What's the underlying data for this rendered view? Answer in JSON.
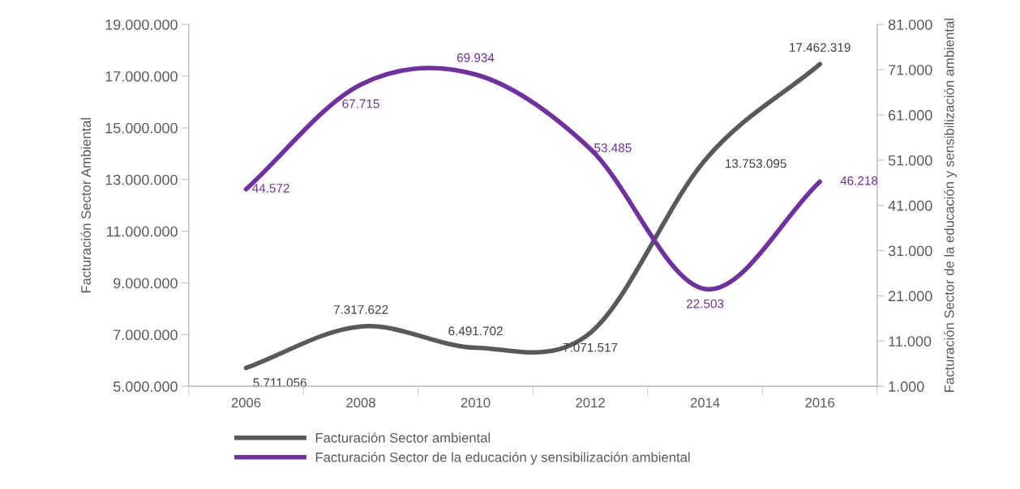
{
  "chart_data": {
    "type": "line",
    "categories": [
      "2006",
      "2008",
      "2010",
      "2012",
      "2014",
      "2016"
    ],
    "ylabel": "Facturación Sector Ambiental",
    "y2label": "Facturación Sector de la educación y sensibilización ambiental",
    "ylim": [
      5000000,
      19000000
    ],
    "yticks": [
      {
        "value": 5000000,
        "label": "5.000.000"
      },
      {
        "value": 7000000,
        "label": "7.000.000"
      },
      {
        "value": 9000000,
        "label": "9.000.000"
      },
      {
        "value": 11000000,
        "label": "11.000.000"
      },
      {
        "value": 13000000,
        "label": "13.000.000"
      },
      {
        "value": 15000000,
        "label": "15.000.000"
      },
      {
        "value": 17000000,
        "label": "17.000.000"
      },
      {
        "value": 19000000,
        "label": "19.000.000"
      }
    ],
    "y2lim": [
      1000,
      81000
    ],
    "y2ticks": [
      {
        "value": 1000,
        "label": "1.000"
      },
      {
        "value": 11000,
        "label": "11.000"
      },
      {
        "value": 21000,
        "label": "21.000"
      },
      {
        "value": 31000,
        "label": "31.000"
      },
      {
        "value": 41000,
        "label": "41.000"
      },
      {
        "value": 51000,
        "label": "51.000"
      },
      {
        "value": 61000,
        "label": "61.000"
      },
      {
        "value": 71000,
        "label": "71.000"
      },
      {
        "value": 81000,
        "label": "81.000"
      }
    ],
    "series": [
      {
        "name": "Facturación Sector ambiental",
        "color": "#595959",
        "values": [
          5711056,
          7317622,
          6491702,
          7071517,
          13753095,
          17462319
        ],
        "value_labels": [
          "5.711.056",
          "7.317.622",
          "6.491.702",
          "7.071.517",
          "13.753.095",
          "17.462.319"
        ]
      },
      {
        "name": "Facturación Sector de la educación y sensibilización ambiental",
        "color": "#7030a0",
        "axis": "y2",
        "values": [
          44572,
          67715,
          69934,
          53485,
          22503,
          46218
        ],
        "value_labels": [
          "44.572",
          "67.715",
          "69.934",
          "53.485",
          "22.503",
          "46.218"
        ]
      }
    ],
    "legend": "bottom",
    "grid": false,
    "marker": "none",
    "line_style": "solid"
  }
}
